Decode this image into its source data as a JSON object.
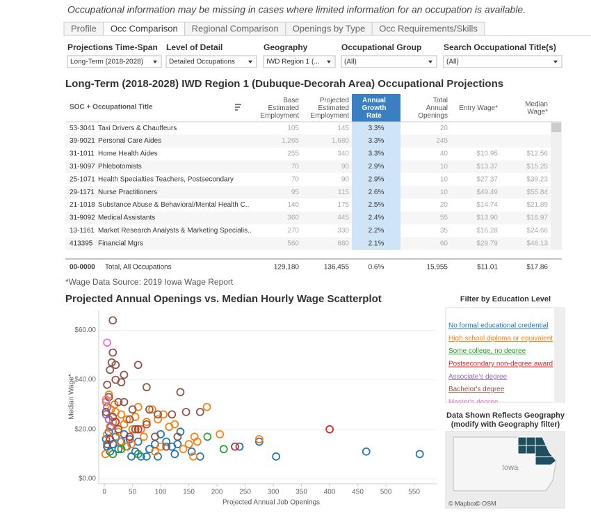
{
  "note": "Occupational information may be missing in cases where limited information for an occupation is available.",
  "tabs": [
    "Profile",
    "Occ Comparison",
    "Regional Comparison",
    "Openings by Type",
    "Occ Requirements/Skills"
  ],
  "filters": [
    {
      "label": "Projections Time-Span",
      "value": "Long-Term (2018-2028)"
    },
    {
      "label": "Level of Detail",
      "value": "Detailed Occupations"
    },
    {
      "label": "Geography",
      "value": "IWD Region 1 (..."
    },
    {
      "label": "Occupational Group",
      "value": "(All)"
    },
    {
      "label": "Search Occupational Title(s)",
      "value": "(All)"
    }
  ],
  "table": {
    "title": "Long-Term (2018-2028) IWD Region 1 (Dubuque-Decorah Area) Occupational Projections",
    "headers": {
      "title": "SOC + Occupational Title",
      "base": "Base Estimated Employment",
      "projected": "Projected Estimated Employment",
      "growth": "Annual Growth Rate",
      "openings": "Total Annual Openings",
      "entry": "Entry Wage*",
      "median": "Median Wage*"
    },
    "rows": [
      {
        "soc": "53-3041",
        "title": "Taxi Drivers & Chauffeurs",
        "base": "105",
        "projected": "145",
        "growth": "3.3%",
        "openings": "20"
      },
      {
        "soc": "39-9021",
        "title": "Personal Care Aides",
        "base": "1,265",
        "projected": "1,680",
        "growth": "3.3%",
        "openings": "245"
      },
      {
        "soc": "31-1011",
        "title": "Home Health Aides",
        "base": "255",
        "projected": "340",
        "growth": "3.3%",
        "openings": "40",
        "entry": "$10.95",
        "median": "$12.56"
      },
      {
        "soc": "31-9097",
        "title": "Phlebotomists",
        "base": "70",
        "projected": "90",
        "growth": "2.9%",
        "openings": "10",
        "entry": "$13.37",
        "median": "$15.25"
      },
      {
        "soc": "25-1071",
        "title": "Health Specialties Teachers, Postsecondary",
        "base": "70",
        "projected": "90",
        "growth": "2.9%",
        "openings": "10",
        "entry": "$27.37",
        "median": "$39.23"
      },
      {
        "soc": "29-1171",
        "title": "Nurse Practitioners",
        "base": "95",
        "projected": "115",
        "growth": "2.6%",
        "openings": "10",
        "entry": "$49.49",
        "median": "$55.84"
      },
      {
        "soc": "21-1018",
        "title": "Substance Abuse & Behavioral/Mental Health C..",
        "base": "140",
        "projected": "175",
        "growth": "2.5%",
        "openings": "20",
        "entry": "$14.74",
        "median": "$21.89"
      },
      {
        "soc": "31-9092",
        "title": "Medical Assistants",
        "base": "360",
        "projected": "445",
        "growth": "2.4%",
        "openings": "55",
        "entry": "$13.90",
        "median": "$16.97"
      },
      {
        "soc": "13-1161",
        "title": "Market Research Analysts & Marketing Specialis..",
        "base": "270",
        "projected": "330",
        "growth": "2.2%",
        "openings": "35",
        "entry": "$16.28",
        "median": "$24.66"
      },
      {
        "soc": "413395",
        "title": "Financial Mgrs",
        "base": "560",
        "projected": "680",
        "growth": "2.1%",
        "openings": "60",
        "entry": "$29.79",
        "median": "$46.13"
      }
    ],
    "total": {
      "soc": "00-0000",
      "title": "Total, All Occupations",
      "base": "129,180",
      "projected": "136,455",
      "growth": "0.6%",
      "openings": "15,955",
      "entry": "$11.01",
      "median": "$17.86"
    }
  },
  "wage_source": "*Wage Data Source: 2019 Iowa Wage Report",
  "legend_title": "Filter by Education Level",
  "map": {
    "title": "Data Shown Reflects Geography (modify with Geography filter)",
    "label": "Iowa",
    "credits": [
      "© Mapbox",
      "© OSM"
    ]
  },
  "chart_data": {
    "type": "scatter",
    "title": "Projected Annual Openings vs. Median Hourly Wage Scatterplot",
    "x_label": "Projected Annual Job Openings",
    "y_label": "Median Wage*",
    "xlim": [
      -10,
      590
    ],
    "xticks": [
      0,
      50,
      100,
      150,
      200,
      250,
      300,
      350,
      400,
      450,
      500,
      550
    ],
    "ylim": [
      -2,
      68
    ],
    "yticks": [
      {
        "value": 0,
        "label": "$0.00"
      },
      {
        "value": 20,
        "label": "$20.00"
      },
      {
        "value": 40,
        "label": "$40.00"
      },
      {
        "value": 60,
        "label": "$60.00"
      }
    ],
    "grid": true,
    "series": [
      {
        "name": "No formal educational credential",
        "color": "#1f77b4",
        "x": [
          560,
          465,
          305,
          275,
          240,
          170,
          155,
          135,
          130,
          120,
          110,
          100,
          95,
          90,
          80,
          75,
          65,
          55,
          45,
          40,
          35,
          30,
          25,
          20,
          15,
          10,
          8,
          5,
          3,
          48,
          60,
          125
        ],
        "values": [
          10,
          11,
          9,
          15,
          13,
          9,
          11,
          19,
          14,
          13,
          15,
          18,
          9,
          14,
          12,
          9,
          9,
          11,
          16,
          13,
          18,
          15,
          12,
          17,
          14,
          11,
          19,
          13,
          16,
          9,
          15,
          10
        ]
      },
      {
        "name": "High school diploma or equivalent",
        "color": "#ff7f0e",
        "x": [
          275,
          205,
          182,
          165,
          160,
          150,
          140,
          125,
          115,
          105,
          95,
          85,
          75,
          65,
          60,
          55,
          50,
          45,
          40,
          35,
          30,
          25,
          20,
          15,
          10,
          5,
          3,
          8,
          12,
          18,
          28,
          38,
          48,
          70,
          90,
          158,
          2,
          100
        ],
        "values": [
          16,
          18,
          29,
          15,
          17,
          14,
          12,
          22,
          21,
          26,
          24,
          28,
          23,
          20,
          29,
          25,
          20,
          17,
          24,
          22,
          26,
          19,
          27,
          23,
          21,
          18,
          31,
          34,
          28,
          30,
          15,
          13,
          14,
          17,
          11,
          9,
          10,
          13
        ]
      },
      {
        "name": "Some college, no degree",
        "color": "#2ca02c",
        "x": [
          212,
          183,
          60,
          30,
          15
        ],
        "values": [
          12,
          17,
          10,
          12,
          10
        ]
      },
      {
        "name": "Postsecondary non-degree award",
        "color": "#d62728",
        "x": [
          400,
          232,
          45,
          60,
          20,
          10
        ],
        "values": [
          20,
          13,
          17,
          20,
          23,
          16
        ]
      },
      {
        "name": "Associate's degree",
        "color": "#9467bd",
        "x": [
          5,
          3,
          8,
          12
        ],
        "values": [
          29,
          26,
          24,
          21
        ]
      },
      {
        "name": "Bachelor's degree",
        "color": "#8c564b",
        "x": [
          15,
          15,
          13,
          20,
          60,
          10,
          35,
          20,
          30,
          75,
          135,
          5,
          8,
          25,
          35,
          50,
          80,
          95,
          120,
          145,
          170,
          3,
          15,
          45,
          75,
          55,
          25,
          90,
          130,
          5,
          110
        ],
        "values": [
          64,
          51,
          47,
          46,
          46,
          44,
          42,
          40,
          39,
          37,
          35,
          38,
          33,
          31,
          31,
          28,
          28,
          26,
          26,
          27,
          27,
          27,
          25,
          24,
          22,
          20,
          20,
          17,
          17,
          14,
          13
        ]
      },
      {
        "name": "Master's degree",
        "color": "#e377c2",
        "x": [
          5,
          3
        ],
        "values": [
          55,
          32
        ]
      }
    ]
  }
}
